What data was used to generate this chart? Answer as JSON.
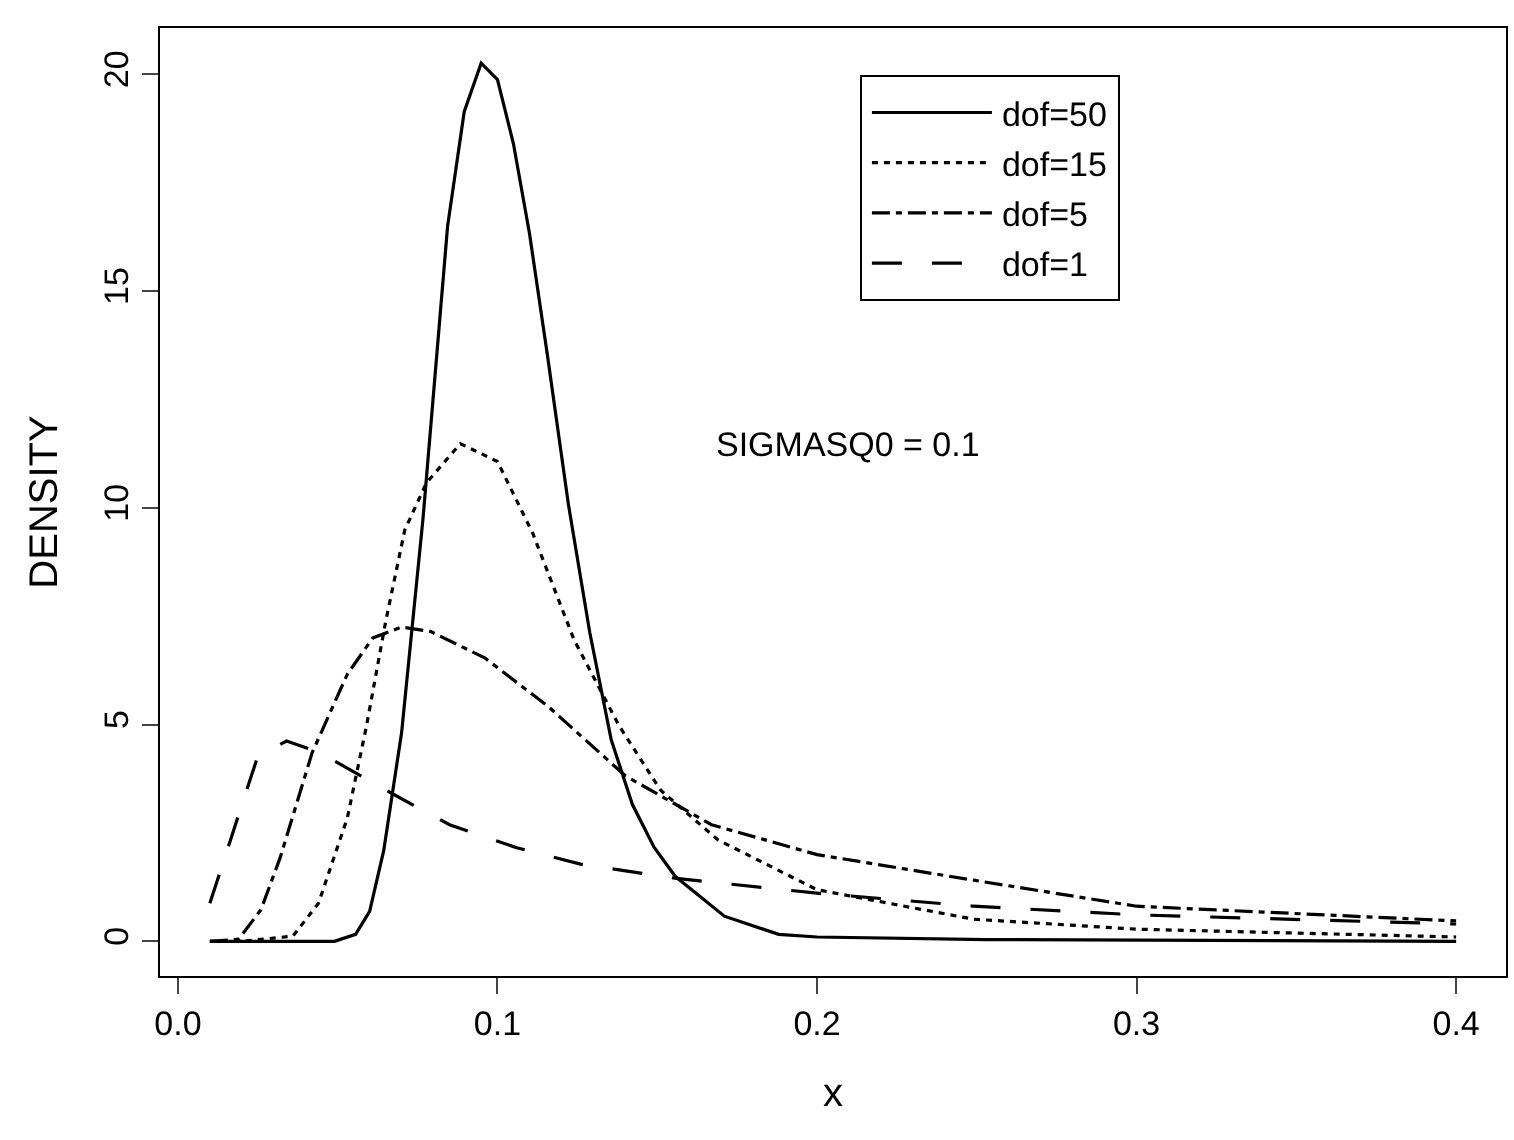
{
  "chart_data": {
    "type": "line",
    "xlabel": "x",
    "ylabel": "DENSITY",
    "annotations": [
      "SIGMASQ0 = 0.1"
    ],
    "xlim": [
      -0.0056,
      0.4156
    ],
    "xticks": [
      {
        "value": 0,
        "label": "0.0"
      },
      0.1,
      0.2,
      0.3,
      0.4
    ],
    "ylim": [
      -0.8,
      21.07
    ],
    "yticks": [
      0,
      5,
      10,
      15,
      20
    ],
    "grid": false,
    "legend": "top right",
    "marker": "none",
    "series": [
      {
        "name": "dof=50",
        "color": "#000000",
        "line_style": "solid",
        "x": [
          0.01,
          0.049,
          0.0556,
          0.06,
          0.0644,
          0.07,
          0.0767,
          0.0844,
          0.0896,
          0.0949,
          0.1,
          0.105,
          0.11,
          0.1156,
          0.1222,
          0.1289,
          0.1356,
          0.1422,
          0.149,
          0.1556,
          0.171,
          0.188,
          0.2,
          0.253,
          0.4
        ],
        "values": [
          0,
          0,
          0.16,
          0.69,
          2.09,
          4.81,
          9.75,
          16.5,
          19.14,
          20.26,
          19.88,
          18.4,
          16.34,
          13.54,
          10.08,
          7.12,
          4.65,
          3.16,
          2.17,
          1.5,
          0.58,
          0.16,
          0.1,
          0.04,
          0
        ]
      },
      {
        "name": "dof=15",
        "color": "#000000",
        "line_style": "dotted",
        "x": [
          0.01,
          0.02,
          0.036,
          0.044,
          0.053,
          0.059,
          0.065,
          0.071,
          0.0778,
          0.0884,
          0.1,
          0.111,
          0.124,
          0.138,
          0.151,
          0.169,
          0.2,
          0.249,
          0.3,
          0.4
        ],
        "values": [
          0,
          0,
          0.12,
          0.88,
          2.84,
          4.96,
          7.37,
          9.49,
          10.58,
          11.48,
          11.07,
          9.42,
          6.95,
          4.98,
          3.49,
          2.34,
          1.19,
          0.51,
          0.28,
          0.1
        ]
      },
      {
        "name": "dof=5",
        "color": "#000000",
        "line_style": "dashdot",
        "x": [
          0.01,
          0.019,
          0.026,
          0.032,
          0.042,
          0.053,
          0.061,
          0.07,
          0.079,
          0.096,
          0.116,
          0.14,
          0.167,
          0.2,
          0.249,
          0.3,
          0.4
        ],
        "values": [
          0,
          0.05,
          0.73,
          1.93,
          4.35,
          6.16,
          7.0,
          7.25,
          7.15,
          6.54,
          5.41,
          3.82,
          2.69,
          2.0,
          1.41,
          0.81,
          0.47
        ]
      },
      {
        "name": "dof=1",
        "color": "#000000",
        "line_style": "dashed",
        "x": [
          0.01,
          0.014,
          0.02,
          0.025,
          0.034,
          0.0445,
          0.067,
          0.085,
          0.106,
          0.126,
          0.156,
          0.2,
          0.249,
          0.3,
          0.4
        ],
        "values": [
          0.88,
          1.78,
          3.14,
          4.27,
          4.62,
          4.35,
          3.41,
          2.69,
          2.16,
          1.78,
          1.45,
          1.11,
          0.81,
          0.61,
          0.4
        ]
      }
    ]
  }
}
